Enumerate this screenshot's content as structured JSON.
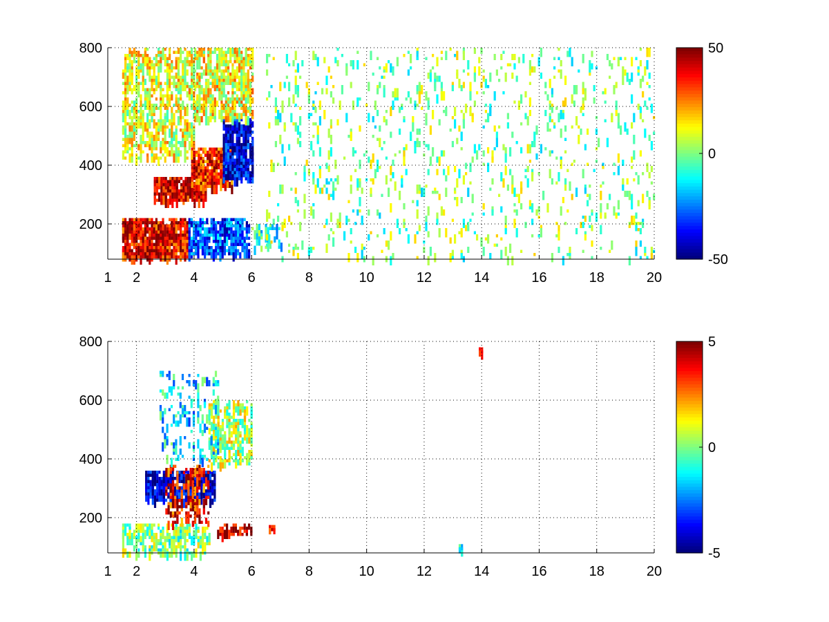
{
  "chart_data": [
    {
      "type": "heatmap",
      "title": "",
      "xlabel": "",
      "ylabel": "",
      "xlim": [
        1,
        20
      ],
      "ylim": [
        80,
        800
      ],
      "xticks": [
        1,
        2,
        4,
        6,
        8,
        10,
        12,
        14,
        16,
        18,
        20
      ],
      "yticks": [
        200,
        400,
        600,
        800
      ],
      "grid": true,
      "colormap": "jet",
      "colorbar": {
        "min": -50,
        "max": 50,
        "ticks": [
          50,
          0,
          -50
        ]
      },
      "regions": [
        {
          "x": [
            1.5,
            3.8
          ],
          "y": [
            90,
            220
          ],
          "value": 40,
          "density": 0.85
        },
        {
          "x": [
            2.6,
            4.4
          ],
          "y": [
            280,
            360
          ],
          "value": 42,
          "density": 0.85
        },
        {
          "x": [
            3.9,
            5.3
          ],
          "y": [
            330,
            460
          ],
          "value": 35,
          "density": 0.8
        },
        {
          "x": [
            3.8,
            5.9
          ],
          "y": [
            100,
            220
          ],
          "value": -30,
          "density": 0.7
        },
        {
          "x": [
            5.0,
            6.0
          ],
          "y": [
            350,
            560
          ],
          "value": -40,
          "density": 0.75
        },
        {
          "x": [
            1.5,
            4.0
          ],
          "y": [
            420,
            800
          ],
          "value": 10,
          "density": 0.45
        },
        {
          "x": [
            4.0,
            6.0
          ],
          "y": [
            560,
            800
          ],
          "value": 12,
          "density": 0.55
        },
        {
          "x": [
            6.0,
            7.0
          ],
          "y": [
            120,
            200
          ],
          "value": -10,
          "density": 0.4
        },
        {
          "x": [
            6.5,
            20.0
          ],
          "y": [
            80,
            800
          ],
          "value": 0,
          "density": 0.08
        }
      ]
    },
    {
      "type": "heatmap",
      "title": "",
      "xlabel": "",
      "ylabel": "",
      "xlim": [
        1,
        20
      ],
      "ylim": [
        80,
        800
      ],
      "xticks": [
        1,
        2,
        4,
        6,
        8,
        10,
        12,
        14,
        16,
        18,
        20
      ],
      "yticks": [
        200,
        400,
        600,
        800
      ],
      "grid": true,
      "colormap": "jet",
      "colorbar": {
        "min": -5,
        "max": 5,
        "ticks": [
          5,
          0,
          -5
        ]
      },
      "regions": [
        {
          "x": [
            1.5,
            4.5
          ],
          "y": [
            80,
            180
          ],
          "value": 0,
          "density": 0.45
        },
        {
          "x": [
            2.3,
            4.7
          ],
          "y": [
            260,
            360
          ],
          "value": -4.5,
          "density": 0.75
        },
        {
          "x": [
            3.0,
            4.5
          ],
          "y": [
            180,
            380
          ],
          "value": 3.5,
          "density": 0.35
        },
        {
          "x": [
            4.8,
            6.0
          ],
          "y": [
            140,
            180
          ],
          "value": 4.5,
          "density": 0.6
        },
        {
          "x": [
            4.5,
            6.0
          ],
          "y": [
            380,
            600
          ],
          "value": 0.5,
          "density": 0.55
        },
        {
          "x": [
            2.8,
            4.8
          ],
          "y": [
            400,
            700
          ],
          "value": -1.5,
          "density": 0.18
        },
        {
          "x": [
            6.6,
            6.8
          ],
          "y": [
            155,
            175
          ],
          "value": 3.5,
          "density": 1
        },
        {
          "x": [
            13.9,
            14.0
          ],
          "y": [
            765,
            780
          ],
          "value": 2.5,
          "density": 1
        },
        {
          "x": [
            13.2,
            13.3
          ],
          "y": [
            85,
            110
          ],
          "value": -1,
          "density": 1
        }
      ]
    }
  ]
}
